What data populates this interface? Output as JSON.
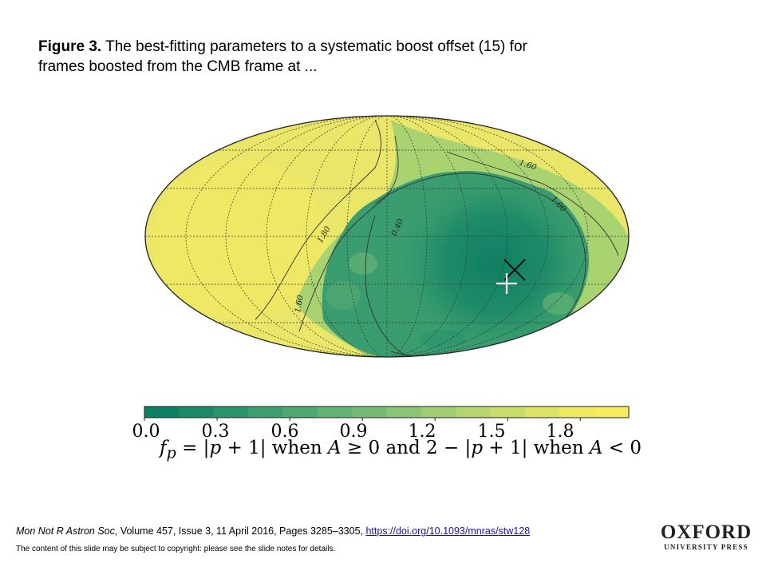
{
  "caption": {
    "label": "Figure 3.",
    "text": " The best-fitting parameters to a systematic boost offset (15) for frames boosted from the CMB frame at ..."
  },
  "map": {
    "projection": "mollweide",
    "contour_labels": [
      "1.60",
      "1.00",
      "1.80",
      "0.40",
      "1.60"
    ],
    "markers": [
      "black-cross",
      "white-plus"
    ]
  },
  "colorbar": {
    "ticks": [
      "0.0",
      "0.3",
      "0.6",
      "0.9",
      "1.2",
      "1.5",
      "1.8"
    ],
    "colors": [
      "#0f7f63",
      "#1c8a68",
      "#2b946c",
      "#3c9e6f",
      "#4fa872",
      "#62b274",
      "#76bb74",
      "#8ac474",
      "#9fcd72",
      "#b4d56f",
      "#c8dd6c",
      "#dce468",
      "#eeea63",
      "#f7ec5f"
    ],
    "range": [
      0.0,
      2.0
    ]
  },
  "formula": {
    "lhs": "f",
    "sub": "p",
    "eq": " = |",
    "p1": "p",
    "mid1": " + 1| when ",
    "A1": "A",
    "mid2": " ≥ 0 and 2 − |",
    "p2": "p",
    "mid3": " + 1| when ",
    "A2": "A",
    "end": " < 0"
  },
  "citation": {
    "journal": "Mon Not R Astron Soc",
    "details": ", Volume 457, Issue 3, 11 April 2016, Pages 3285–3305, ",
    "doi": "https://doi.org/10.1093/mnras/stw128"
  },
  "copyright": "The content of this slide may be subject to copyright: please see the slide notes for details.",
  "logo": {
    "line1": "OXFORD",
    "line2": "UNIVERSITY PRESS"
  }
}
